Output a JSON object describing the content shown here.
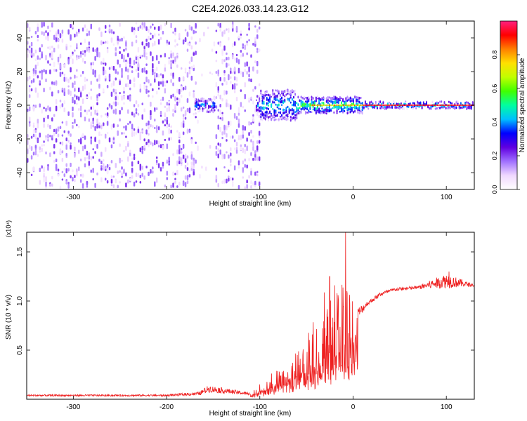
{
  "title": "C2E4.2026.033.14.23.G12",
  "chart_data": [
    {
      "type": "heatmap",
      "name": "spectrogram",
      "xlabel": "Height of straight line (km)",
      "ylabel": "Frequency (Hz)",
      "xlim": [
        -350,
        130
      ],
      "ylim": [
        -50,
        50
      ],
      "x_ticks": [
        -300,
        -200,
        -100,
        0,
        100
      ],
      "x_tick_labels": [
        "-300",
        "-200",
        "-100",
        "0",
        "100"
      ],
      "y_ticks": [
        -40,
        -20,
        0,
        20,
        40
      ],
      "y_tick_labels": [
        "-40",
        "-20",
        "0",
        "20",
        "40"
      ],
      "colorbar": {
        "label": "Normalized spectral amplitude",
        "range": [
          0,
          1
        ],
        "ticks": [
          0.0,
          0.2,
          0.4,
          0.6,
          0.8
        ],
        "tick_labels": [
          "0.0",
          "0.2",
          "0.4",
          "0.6",
          "0.8"
        ],
        "colormap_stops": [
          "#ffffff",
          "#f0d8ff",
          "#a070ff",
          "#6000e0",
          "#0000ff",
          "#00c0ff",
          "#00ffa0",
          "#40ff00",
          "#c0ff00",
          "#ffe000",
          "#ff8000",
          "#ff0000",
          "#ff2080"
        ]
      },
      "regions": [
        {
          "x_range": [
            -350,
            -170
          ],
          "description_level": 0.15
        },
        {
          "x_range": [
            -170,
            -100
          ],
          "description_level": 0.2
        },
        {
          "x_range": [
            -100,
            10
          ],
          "description_level": 0.5
        },
        {
          "x_range": [
            10,
            130
          ],
          "description_level": 0.95
        }
      ]
    },
    {
      "type": "line",
      "name": "snr",
      "xlabel": "Height of straight line (km)",
      "ylabel": "SNR (10 * v/v)",
      "y_multiplier": "(x10⁴)",
      "xlim": [
        -350,
        130
      ],
      "ylim": [
        0,
        1.7
      ],
      "x_ticks": [
        -300,
        -200,
        -100,
        0,
        100
      ],
      "x_tick_labels": [
        "-300",
        "-200",
        "-100",
        "0",
        "100"
      ],
      "y_ticks": [
        0.5,
        1.0,
        1.5
      ],
      "y_tick_labels": [
        "0.5",
        "1.0",
        "1.5"
      ],
      "color": "#ee2020",
      "series_envelope": {
        "x": [
          -350,
          -200,
          -165,
          -155,
          -110,
          -90,
          -70,
          -50,
          -30,
          -15,
          -5,
          5,
          15,
          30,
          45,
          70,
          100,
          130
        ],
        "baseline": [
          0.03,
          0.03,
          0.04,
          0.07,
          0.04,
          0.12,
          0.2,
          0.3,
          0.4,
          0.5,
          0.6,
          0.8,
          0.95,
          1.05,
          1.1,
          1.12,
          1.13,
          1.15
        ],
        "peak": [
          0.05,
          0.05,
          0.08,
          0.15,
          0.07,
          0.25,
          0.45,
          0.75,
          1.2,
          1.4,
          1.6,
          0.95,
          1.0,
          1.1,
          1.14,
          1.16,
          1.3,
          1.17
        ]
      },
      "spikes": [
        {
          "x": -25,
          "y": 1.25
        },
        {
          "x": -8,
          "y": 1.72
        },
        {
          "x": 103,
          "y": 1.3
        }
      ]
    }
  ]
}
